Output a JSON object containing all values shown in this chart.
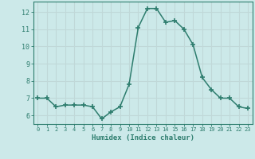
{
  "x": [
    0,
    1,
    2,
    3,
    4,
    5,
    6,
    7,
    8,
    9,
    10,
    11,
    12,
    13,
    14,
    15,
    16,
    17,
    18,
    19,
    20,
    21,
    22,
    23
  ],
  "y": [
    7.0,
    7.0,
    6.5,
    6.6,
    6.6,
    6.6,
    6.5,
    5.8,
    6.2,
    6.5,
    7.8,
    11.1,
    12.2,
    12.2,
    11.4,
    11.5,
    11.0,
    10.1,
    8.2,
    7.5,
    7.0,
    7.0,
    6.5,
    6.4
  ],
  "xlabel": "Humidex (Indice chaleur)",
  "ylim": [
    5.5,
    12.6
  ],
  "xlim": [
    -0.5,
    23.5
  ],
  "yticks": [
    6,
    7,
    8,
    9,
    10,
    11,
    12
  ],
  "xticks": [
    0,
    1,
    2,
    3,
    4,
    5,
    6,
    7,
    8,
    9,
    10,
    11,
    12,
    13,
    14,
    15,
    16,
    17,
    18,
    19,
    20,
    21,
    22,
    23
  ],
  "line_color": "#2e7d6e",
  "marker": "+",
  "marker_size": 4,
  "bg_color": "#cce9e9",
  "grid_color": "#c0d8d8",
  "axis_color": "#2e7d6e",
  "tick_label_color": "#2e7d6e",
  "xlabel_color": "#2e7d6e",
  "line_width": 1.1
}
